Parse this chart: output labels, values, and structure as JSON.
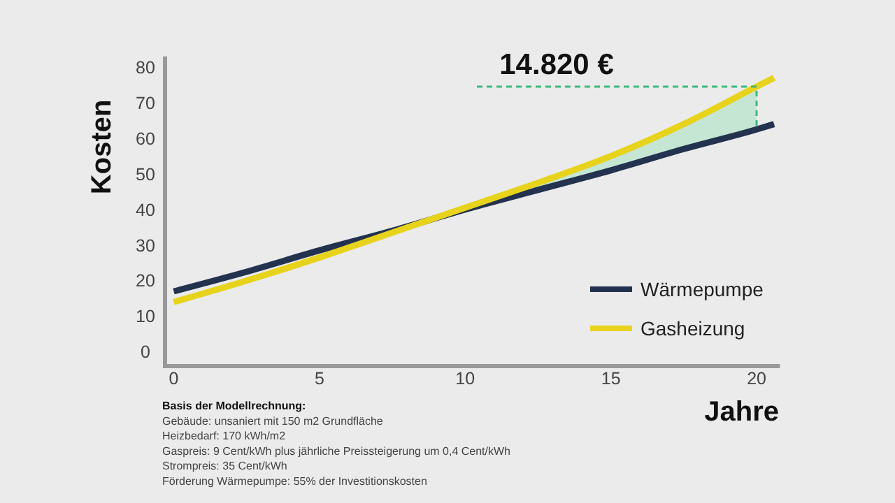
{
  "chart_data": {
    "type": "line",
    "ylabel": "Kosten",
    "xlabel": "Jahre",
    "x": [
      0,
      2.5,
      5,
      7.5,
      10,
      12.5,
      15,
      17.5,
      20,
      20.6
    ],
    "series": [
      {
        "name": "Wärmepumpe",
        "color": "#22324f",
        "values": [
          17,
          22.5,
          28.5,
          34,
          40,
          45.5,
          51,
          57,
          62.5,
          64
        ]
      },
      {
        "name": "Gasheizung",
        "color": "#e8d31c",
        "values": [
          14,
          20,
          26.5,
          33.5,
          40.5,
          47.5,
          55,
          64,
          74.5,
          77
        ]
      }
    ],
    "xlim": [
      -0.3,
      20.8
    ],
    "ylim": [
      -4,
      83
    ],
    "xticks": [
      0,
      5,
      10,
      15,
      20
    ],
    "yticks": [
      0,
      10,
      20,
      30,
      40,
      50,
      60,
      70,
      80
    ],
    "grid": false,
    "legend": "bottom right",
    "annotations": [
      "14.820 €",
      "Basis der Modellrechnung:",
      "Gebäude: unsaniert mit 150 m2 Grundfläche",
      "Heizbedarf: 170 kWh/m2",
      "Gaspreis: 9 Cent/kWh plus jährliche Preissteigerung um 0,4 Cent/kWh",
      "Strompreis: 35 Cent/kWh",
      "Förderung Wärmepumpe: 55% der Investitionskosten"
    ]
  }
}
